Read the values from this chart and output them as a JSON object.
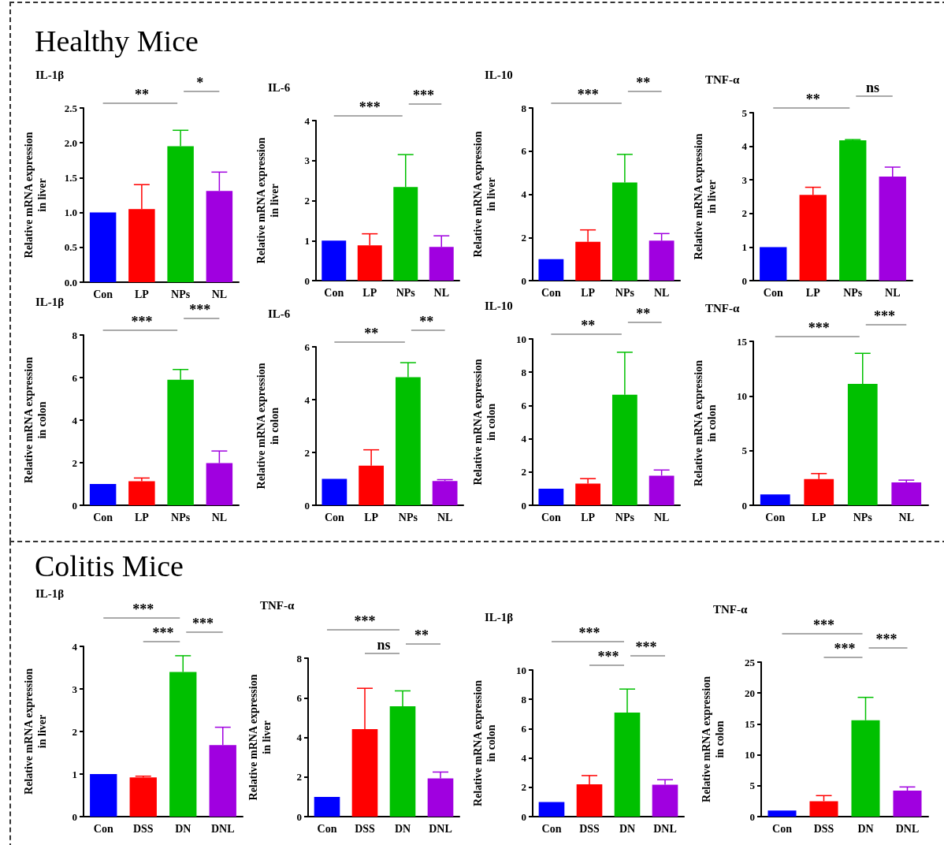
{
  "chart_data": [
    {
      "type": "other",
      "title": "Healthy Mice"
    },
    {
      "type": "bar",
      "title": "IL-1β",
      "ylabel": "Relative mRNA expression\nin liver",
      "categories": [
        "Con",
        "LP",
        "NPs",
        "NL"
      ],
      "values": [
        1.0,
        1.05,
        1.95,
        1.31
      ],
      "colors": [
        "#0000ff",
        "#ff0000",
        "#00c000",
        "#a000e0"
      ],
      "errors": [
        null,
        [
          1.05,
          1.4
        ],
        [
          1.95,
          2.18
        ],
        [
          1.31,
          1.58
        ]
      ],
      "ylim": [
        0,
        2.5
      ],
      "yticks": [
        {
          "value": 0,
          "label": "0.0"
        },
        {
          "value": 0.5,
          "label": "0.5"
        },
        {
          "value": 1,
          "label": "1.0"
        },
        {
          "value": 1.5,
          "label": "1.5"
        },
        {
          "value": 2,
          "label": "2.0"
        },
        {
          "value": 2.5,
          "label": "2.5"
        }
      ],
      "annotations": [
        "**",
        "*"
      ]
    },
    {
      "type": "bar",
      "title": "IL-6",
      "ylabel": "Relative mRNA expression\nin liver",
      "categories": [
        "Con",
        "LP",
        "NPs",
        "NL"
      ],
      "values": [
        1.0,
        0.88,
        2.34,
        0.84
      ],
      "colors": [
        "#0000ff",
        "#ff0000",
        "#00c000",
        "#a000e0"
      ],
      "errors": [
        null,
        [
          0.88,
          1.17
        ],
        [
          2.34,
          3.15
        ],
        [
          0.84,
          1.12
        ]
      ],
      "ylim": [
        0,
        4
      ],
      "yticks": [
        0,
        1,
        2,
        3,
        4
      ],
      "annotations": [
        "***",
        "***"
      ]
    },
    {
      "type": "bar",
      "title": "IL-10",
      "ylabel": "Relative mRNA expression\nin liver",
      "categories": [
        "Con",
        "LP",
        "NPs",
        "NL"
      ],
      "values": [
        1.0,
        1.8,
        4.55,
        1.85
      ],
      "colors": [
        "#0000ff",
        "#ff0000",
        "#00c000",
        "#a000e0"
      ],
      "errors": [
        null,
        [
          1.8,
          2.35
        ],
        [
          4.55,
          5.85
        ],
        [
          1.85,
          2.18
        ]
      ],
      "ylim": [
        0,
        8
      ],
      "yticks": [
        0,
        2,
        4,
        6,
        8
      ],
      "annotations": [
        "***",
        "**"
      ]
    },
    {
      "type": "bar",
      "title": "TNF-α",
      "ylabel": "Relative mRNA expression\nin liver",
      "categories": [
        "Con",
        "LP",
        "NPs",
        "NL"
      ],
      "values": [
        1.0,
        2.55,
        4.18,
        3.1
      ],
      "colors": [
        "#0000ff",
        "#ff0000",
        "#00c000",
        "#a000e0"
      ],
      "errors": [
        null,
        [
          2.55,
          2.78
        ],
        [
          4.18,
          4.2
        ],
        [
          3.1,
          3.38
        ]
      ],
      "ylim": [
        0,
        5
      ],
      "yticks": [
        0,
        1,
        2,
        3,
        4,
        5
      ],
      "annotations": [
        "**",
        "ns"
      ]
    },
    {
      "type": "bar",
      "title": "IL-1β",
      "ylabel": "Relative mRNA expression\nin colon",
      "categories": [
        "Con",
        "LP",
        "NPs",
        "NL"
      ],
      "values": [
        1.0,
        1.13,
        5.9,
        1.98
      ],
      "colors": [
        "#0000ff",
        "#ff0000",
        "#00c000",
        "#a000e0"
      ],
      "errors": [
        null,
        [
          1.13,
          1.28
        ],
        [
          5.9,
          6.38
        ],
        [
          1.98,
          2.55
        ]
      ],
      "ylim": [
        0,
        8
      ],
      "yticks": [
        0,
        2,
        4,
        6,
        8
      ],
      "annotations": [
        "***",
        "***"
      ]
    },
    {
      "type": "bar",
      "title": "IL-6",
      "ylabel": "Relative mRNA expression\nin colon",
      "categories": [
        "Con",
        "LP",
        "NPs",
        "NL"
      ],
      "values": [
        1.0,
        1.5,
        4.85,
        0.92
      ],
      "colors": [
        "#0000ff",
        "#ff0000",
        "#00c000",
        "#a000e0"
      ],
      "errors": [
        null,
        [
          1.5,
          2.1
        ],
        [
          4.85,
          5.4
        ],
        [
          0.92,
          0.97
        ]
      ],
      "ylim": [
        0,
        6
      ],
      "yticks": [
        0,
        2,
        4,
        6
      ],
      "annotations": [
        "**",
        "**"
      ]
    },
    {
      "type": "bar",
      "title": "IL-10",
      "ylabel": "Relative mRNA expression\nin colon",
      "categories": [
        "Con",
        "LP",
        "NPs",
        "NL"
      ],
      "values": [
        1.0,
        1.3,
        6.65,
        1.78
      ],
      "colors": [
        "#0000ff",
        "#ff0000",
        "#00c000",
        "#a000e0"
      ],
      "errors": [
        null,
        [
          1.3,
          1.6
        ],
        [
          6.65,
          9.2
        ],
        [
          1.78,
          2.12
        ]
      ],
      "ylim": [
        0,
        10
      ],
      "yticks": [
        0,
        2,
        4,
        6,
        8,
        10
      ],
      "annotations": [
        "**",
        "**"
      ]
    },
    {
      "type": "bar",
      "title": "TNF-α",
      "ylabel": "Relative mRNA expression\nin colon",
      "categories": [
        "Con",
        "LP",
        "NPs",
        "NL"
      ],
      "values": [
        1.0,
        2.4,
        11.1,
        2.1
      ],
      "colors": [
        "#0000ff",
        "#ff0000",
        "#00c000",
        "#a000e0"
      ],
      "errors": [
        null,
        [
          2.4,
          2.9
        ],
        [
          11.1,
          13.9
        ],
        [
          2.1,
          2.3
        ]
      ],
      "ylim": [
        0,
        15
      ],
      "yticks": [
        0,
        5,
        10,
        15
      ],
      "annotations": [
        "***",
        "***"
      ]
    },
    {
      "type": "other",
      "title": "Colitis Mice"
    },
    {
      "type": "bar",
      "title": "IL-1β",
      "ylabel": "Relative mRNA expression\nin liver",
      "categories": [
        "Con",
        "DSS",
        "DN",
        "DNL"
      ],
      "values": [
        1.0,
        0.92,
        3.4,
        1.68
      ],
      "colors": [
        "#0000ff",
        "#ff0000",
        "#00c000",
        "#a000e0"
      ],
      "errors": [
        null,
        [
          0.92,
          0.95
        ],
        [
          3.4,
          3.78
        ],
        [
          1.68,
          2.1
        ]
      ],
      "ylim": [
        0,
        4
      ],
      "yticks": [
        0,
        1,
        2,
        3,
        4
      ],
      "annotations": [
        "***",
        "***",
        "***"
      ]
    },
    {
      "type": "bar",
      "title": "TNF-α",
      "ylabel": "Relative mRNA expression\nin liver",
      "categories": [
        "Con",
        "DSS",
        "DN",
        "DNL"
      ],
      "values": [
        1.0,
        4.42,
        5.57,
        1.93
      ],
      "colors": [
        "#0000ff",
        "#ff0000",
        "#00c000",
        "#a000e0"
      ],
      "errors": [
        null,
        [
          4.42,
          6.48
        ],
        [
          5.57,
          6.35
        ],
        [
          1.93,
          2.25
        ]
      ],
      "ylim": [
        0,
        8
      ],
      "yticks": [
        0,
        2,
        4,
        6,
        8
      ],
      "annotations": [
        "***",
        "ns",
        "**"
      ]
    },
    {
      "type": "bar",
      "title": "IL-1β",
      "ylabel": "Relative mRNA expression\nin colon",
      "categories": [
        "Con",
        "DSS",
        "DN",
        "DNL"
      ],
      "values": [
        1.0,
        2.2,
        7.1,
        2.18
      ],
      "colors": [
        "#0000ff",
        "#ff0000",
        "#00c000",
        "#a000e0"
      ],
      "errors": [
        null,
        [
          2.2,
          2.8
        ],
        [
          7.1,
          8.7
        ],
        [
          2.18,
          2.52
        ]
      ],
      "ylim": [
        0,
        10
      ],
      "yticks": [
        0,
        2,
        4,
        6,
        8,
        10
      ],
      "annotations": [
        "***",
        "***",
        "***"
      ]
    },
    {
      "type": "bar",
      "title": "TNF-α",
      "ylabel": "Relative mRNA expression\nin colon",
      "categories": [
        "Con",
        "DSS",
        "DN",
        "DNL"
      ],
      "values": [
        1.0,
        2.5,
        15.6,
        4.2
      ],
      "colors": [
        "#0000ff",
        "#ff0000",
        "#00c000",
        "#a000e0"
      ],
      "errors": [
        null,
        [
          2.5,
          3.4
        ],
        [
          15.6,
          19.3
        ],
        [
          4.2,
          4.8
        ]
      ],
      "ylim": [
        0,
        25
      ],
      "yticks": [
        0,
        5,
        10,
        15,
        20,
        25
      ],
      "annotations": [
        "***",
        "***",
        "***"
      ]
    }
  ]
}
